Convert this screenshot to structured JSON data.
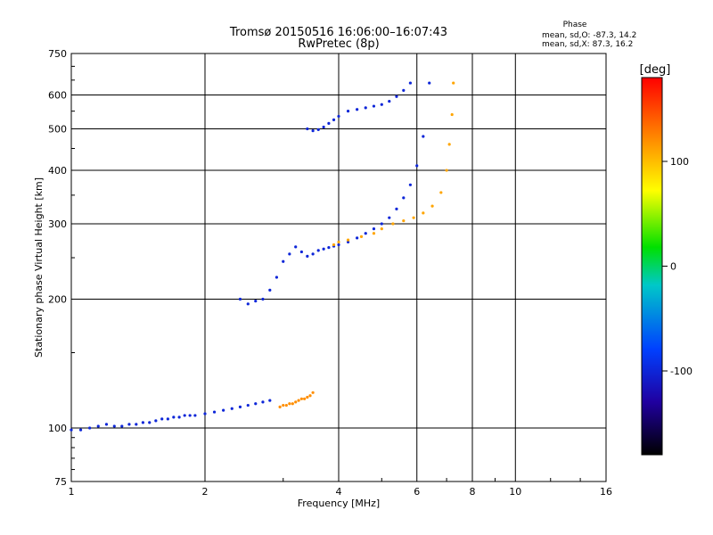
{
  "chart_data": {
    "type": "scatter",
    "title": "Tromsø 20150516 16:06:00–16:07:43",
    "subtitle": "RwPretec (8p)",
    "xlabel": "Frequency [MHz]",
    "ylabel": "Stationary phase Virtual Height [km]",
    "x_scale": "log",
    "y_scale": "log",
    "xlim": [
      1,
      16
    ],
    "ylim": [
      75,
      750
    ],
    "x_ticks": [
      "1",
      "2",
      "4",
      "6",
      "8",
      "10",
      "16"
    ],
    "y_ticks": [
      "75",
      "100",
      "200",
      "300",
      "400",
      "500",
      "600",
      "750"
    ],
    "grid": true,
    "stats": {
      "header": "Phase",
      "line_o": "mean, sd,O: -87.3, 14.2",
      "line_x": "mean, sd,X:  87.3, 16.2"
    },
    "colorbar": {
      "label": "[deg]",
      "range": [
        -180,
        180
      ],
      "ticks": [
        "100",
        "0",
        "-100"
      ],
      "tick_values": [
        100,
        0,
        -100
      ]
    },
    "series": [
      {
        "trace": "lower-E-region",
        "phase_deg": -100,
        "x": [
          1.0,
          1.05,
          1.1,
          1.15,
          1.2,
          1.25,
          1.3,
          1.35,
          1.4,
          1.45,
          1.5,
          1.55,
          1.6,
          1.65,
          1.7,
          1.75,
          1.8,
          1.85,
          1.9,
          2.0,
          2.1,
          2.2,
          2.3,
          2.4,
          2.5,
          2.6,
          2.7,
          2.8
        ],
        "y": [
          99,
          99,
          100,
          101,
          102,
          101,
          101,
          102,
          102,
          103,
          103,
          104,
          105,
          105,
          106,
          106,
          107,
          107,
          107,
          108,
          109,
          110,
          111,
          112,
          113,
          114,
          115,
          116
        ]
      },
      {
        "trace": "lower-E-x-mode",
        "phase_deg": 120,
        "x": [
          2.95,
          3.0,
          3.05,
          3.1,
          3.15,
          3.2,
          3.25,
          3.3,
          3.35,
          3.4,
          3.45,
          3.5
        ],
        "y": [
          112,
          113,
          113,
          114,
          114,
          115,
          116,
          117,
          117,
          118,
          119,
          121
        ]
      },
      {
        "trace": "F-region-o-mode",
        "phase_deg": -100,
        "x": [
          2.4,
          2.5,
          2.6,
          2.7,
          2.8,
          2.9,
          3.0,
          3.1,
          3.2,
          3.3,
          3.4,
          3.5,
          3.6,
          3.7,
          3.8,
          3.9,
          4.0,
          4.2,
          4.4,
          4.6,
          4.8,
          5.0,
          5.2,
          5.4,
          5.6,
          5.8,
          6.0,
          6.2,
          6.4
        ],
        "y": [
          200,
          195,
          198,
          200,
          210,
          225,
          245,
          255,
          265,
          258,
          252,
          255,
          260,
          262,
          264,
          266,
          268,
          272,
          278,
          285,
          292,
          300,
          310,
          325,
          345,
          370,
          410,
          480,
          640
        ]
      },
      {
        "trace": "F-region-x-mode",
        "phase_deg": 110,
        "x": [
          3.9,
          4.0,
          4.2,
          4.5,
          4.8,
          5.0,
          5.3,
          5.6,
          5.9,
          6.2,
          6.5,
          6.8,
          7.0,
          7.1,
          7.2,
          7.25
        ],
        "y": [
          268,
          272,
          275,
          280,
          285,
          292,
          300,
          305,
          310,
          318,
          330,
          355,
          400,
          460,
          540,
          640
        ]
      },
      {
        "trace": "spread-F-upper",
        "phase_deg": -100,
        "x": [
          3.4,
          3.5,
          3.6,
          3.7,
          3.8,
          3.9,
          4.0,
          4.2,
          4.4,
          4.6,
          4.8,
          5.0,
          5.2,
          5.4,
          5.6,
          5.8
        ],
        "y": [
          500,
          495,
          498,
          505,
          515,
          525,
          535,
          550,
          555,
          560,
          565,
          570,
          580,
          595,
          615,
          640
        ]
      }
    ]
  }
}
